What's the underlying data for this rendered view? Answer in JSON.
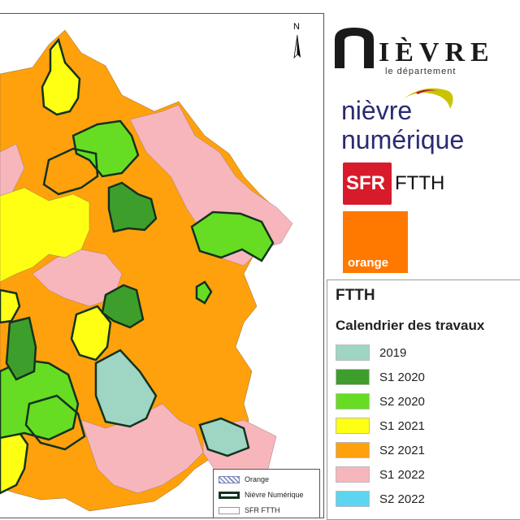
{
  "map": {
    "north_label": "N",
    "legend": [
      {
        "label": "Orange",
        "style": "hatch"
      },
      {
        "label": "Nièvre Numérique",
        "style": "outline"
      },
      {
        "label": "SFR FTTH",
        "style": "plain"
      }
    ],
    "colors": {
      "2019": "#9ed5c3",
      "S1 2020": "#3e9e2b",
      "S2 2020": "#66dd22",
      "S1 2021": "#ffff14",
      "S2 2021": "#ffa10c",
      "S1 2022": "#f7b6bc",
      "S2 2022": "#5dd4f0",
      "outline": "#12321f"
    }
  },
  "logos": {
    "nievre_word": "IÈVRE",
    "nievre_sub": "le département",
    "nn_line1": "nièvre",
    "nn_line2": "numérique",
    "sfr": "SFR",
    "ftth": "FTTH",
    "orange": "orange"
  },
  "calendar": {
    "title": "FTTH",
    "subtitle": "Calendrier des travaux",
    "items": [
      {
        "label": "2019",
        "color": "#9ed5c3"
      },
      {
        "label": "S1 2020",
        "color": "#3e9e2b"
      },
      {
        "label": "S2 2020",
        "color": "#66dd22"
      },
      {
        "label": "S1 2021",
        "color": "#ffff14"
      },
      {
        "label": "S2 2021",
        "color": "#ffa10c"
      },
      {
        "label": "S1 2022",
        "color": "#f7b6bc"
      },
      {
        "label": "S2 2022",
        "color": "#5dd4f0"
      }
    ]
  }
}
